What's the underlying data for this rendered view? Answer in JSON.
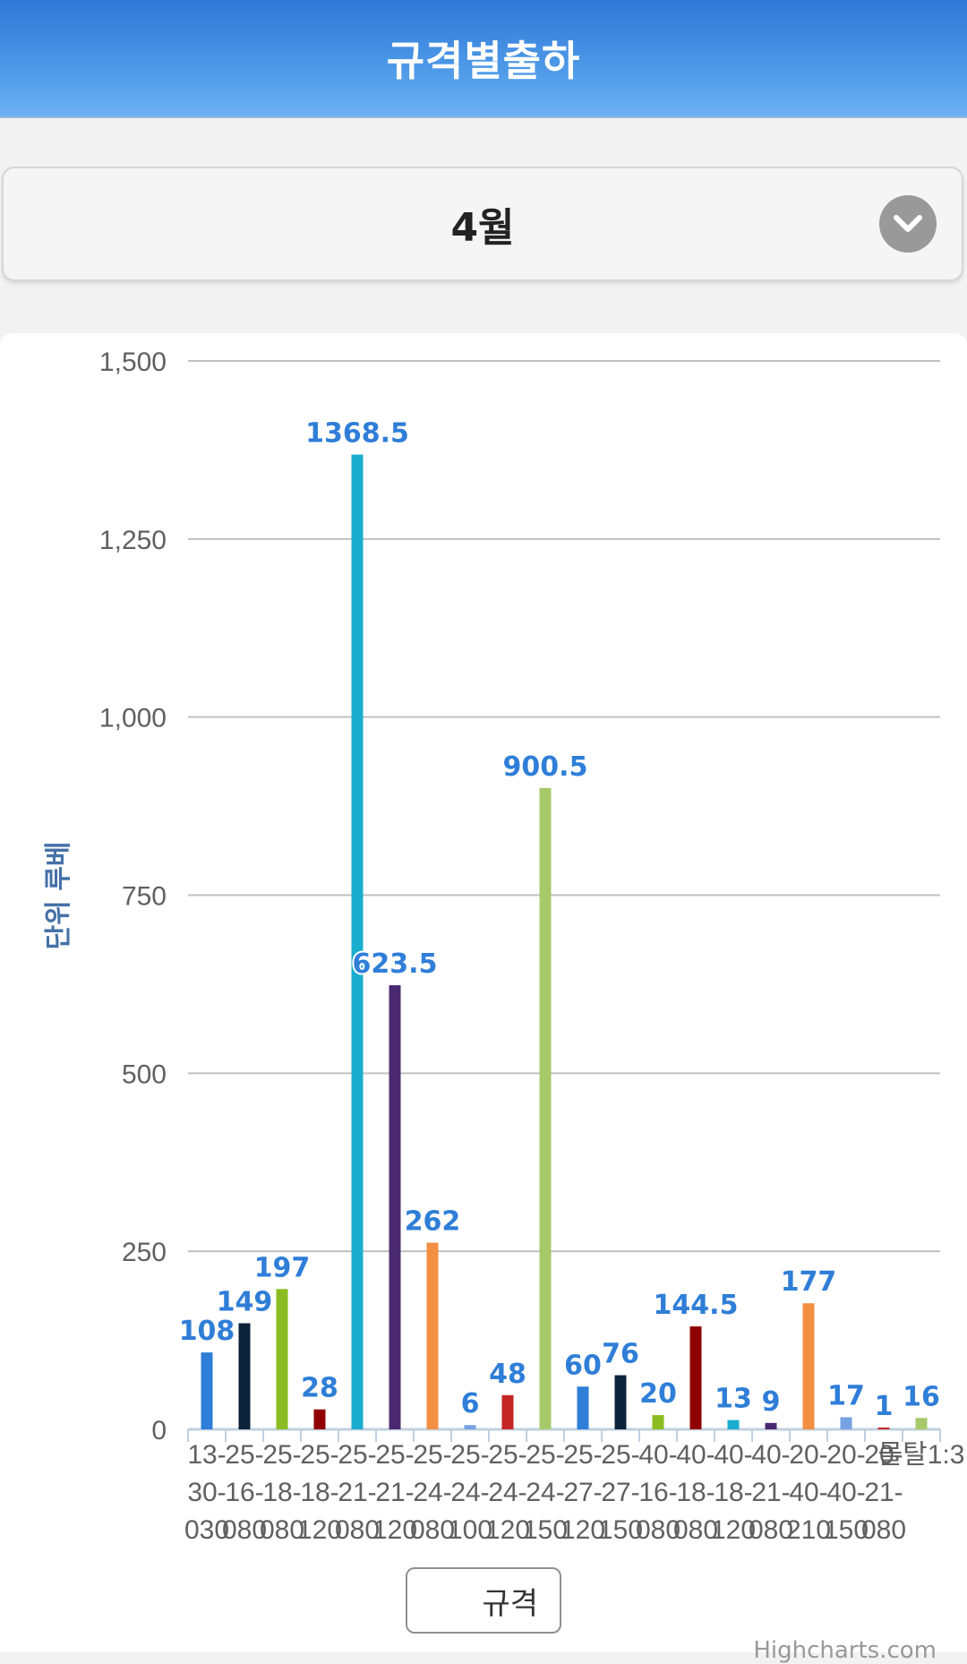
{
  "header": {
    "title": "규격별출하"
  },
  "selector": {
    "value": "4월"
  },
  "chart_data": {
    "type": "bar",
    "ylabel": "단위 루베",
    "ylim": [
      0,
      1500
    ],
    "yticks": [
      0,
      250,
      500,
      750,
      1000,
      1250,
      1500
    ],
    "ytick_labels": [
      "0",
      "250",
      "500",
      "750",
      "1,000",
      "1,250",
      "1,500"
    ],
    "grid": true,
    "legend": {
      "label": "규격",
      "placement": "bottom-center"
    },
    "categories": [
      "13-30-030",
      "25-16-080",
      "25-18-080",
      "25-18-120",
      "25-21-080",
      "25-21-120",
      "25-24-080",
      "25-24-100",
      "25-24-120",
      "25-24-150",
      "25-27-120",
      "25-27-150",
      "40-16-080",
      "40-18-080",
      "40-18-120",
      "40-21-080",
      "20-40-210",
      "20-40-150",
      "20-21-080",
      "몰탈1:3"
    ],
    "values": [
      108,
      149,
      197,
      28,
      1368.5,
      623.5,
      262,
      6,
      48,
      900.5,
      60,
      76,
      20,
      144.5,
      13,
      9,
      177,
      17,
      1,
      16
    ],
    "colors": [
      "#2f7ed8",
      "#0d233a",
      "#8bbc21",
      "#910000",
      "#1aadce",
      "#492970",
      "#f28f43",
      "#77a1e5",
      "#c42525",
      "#a6c96a",
      "#2f7ed8",
      "#0d233a",
      "#8bbc21",
      "#910000",
      "#1aadce",
      "#492970",
      "#f28f43",
      "#77a1e5",
      "#c42525",
      "#a6c96a"
    ],
    "data_labels": [
      "108",
      "149",
      "197",
      "28",
      "1368.5",
      "623.5",
      "262",
      "6",
      "48",
      "900.5",
      "60",
      "76",
      "20",
      "144.5",
      "13",
      "9",
      "177",
      "17",
      "1",
      "16"
    ]
  },
  "credits": "Highcharts.com"
}
